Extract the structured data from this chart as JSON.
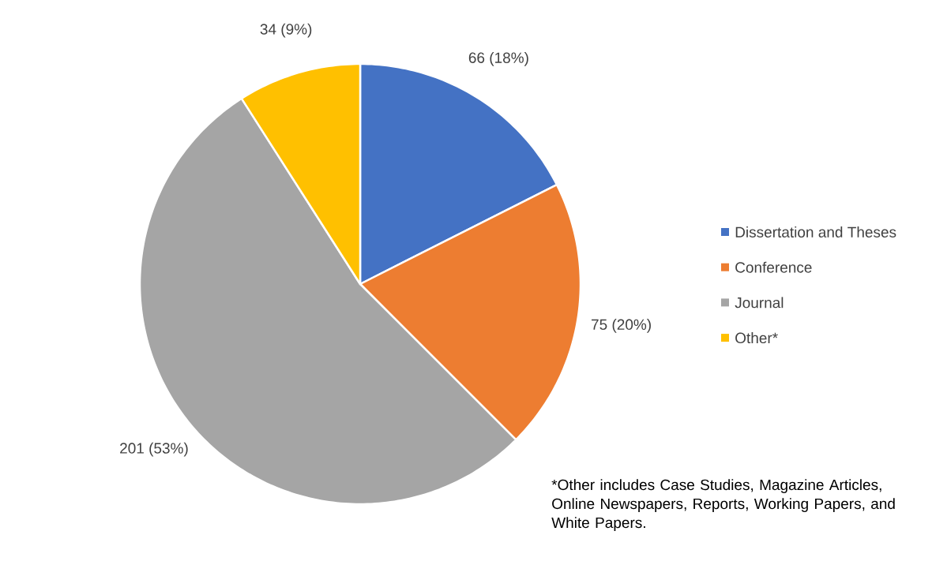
{
  "chart_data": {
    "type": "pie",
    "categories": [
      "Dissertation and Theses",
      "Conference",
      "Journal",
      "Other*"
    ],
    "values": [
      66,
      75,
      201,
      34
    ],
    "colors": [
      "#4472c4",
      "#ed7d31",
      "#a5a5a5",
      "#ffc000"
    ],
    "value_labels": [
      "66 (18%)",
      "75 (20%)",
      "201 (53%)",
      "34 (9%)"
    ],
    "legend": "right",
    "annotations": [
      "*Other includes Case Studies, Magazine Articles, Online Newspapers, Reports, Working Papers, and White Papers."
    ]
  }
}
